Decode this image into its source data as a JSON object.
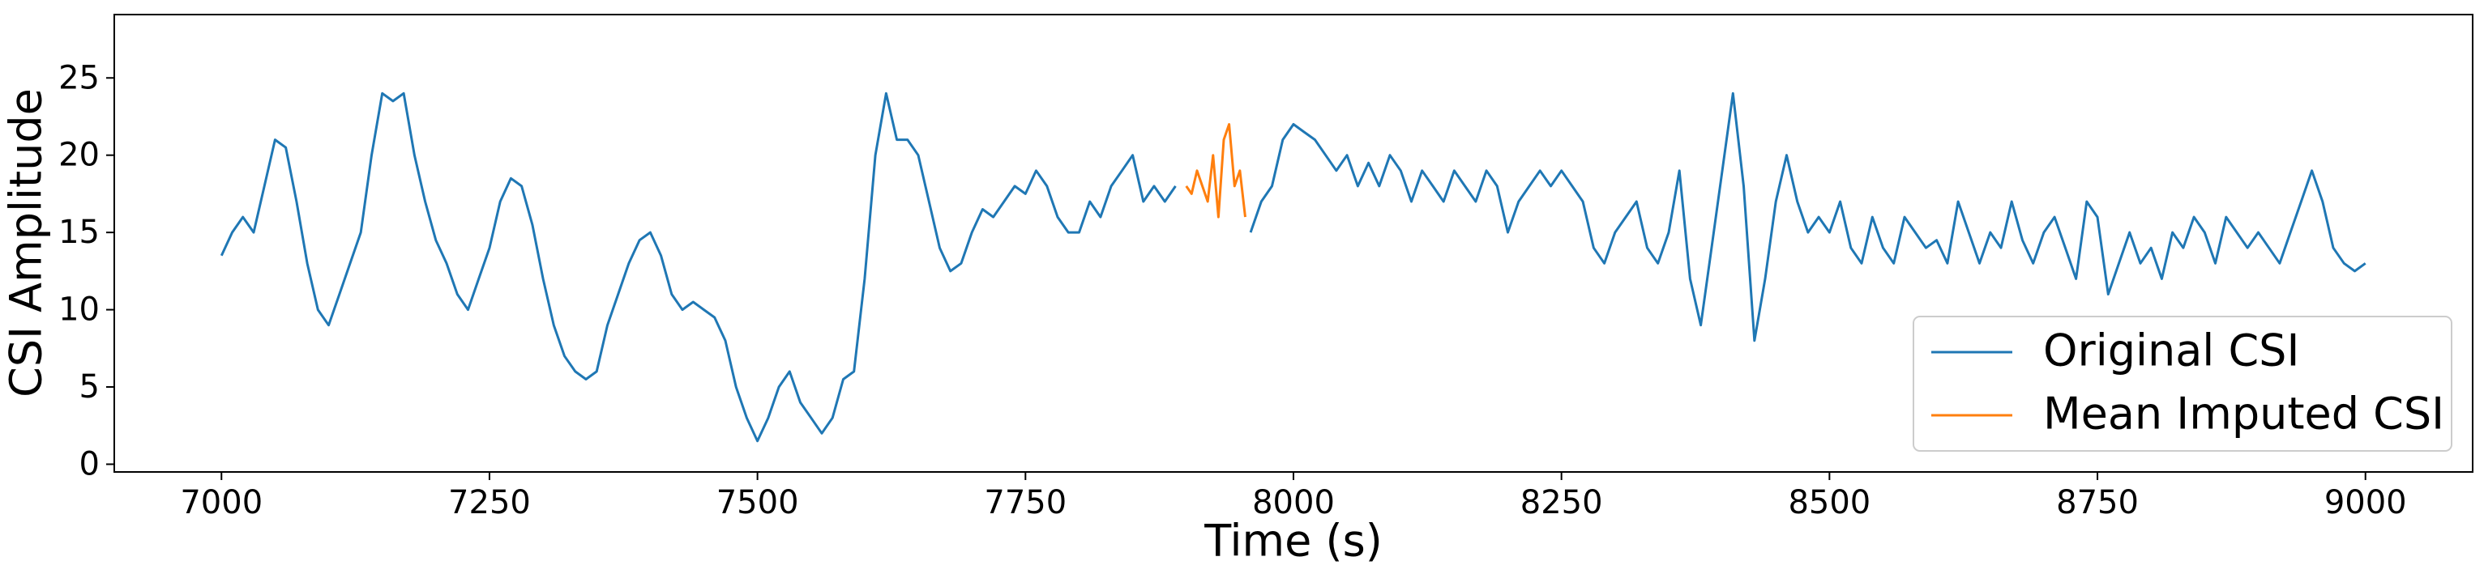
{
  "chart_data": {
    "type": "line",
    "xlabel": "Time (s)",
    "ylabel": "CSI Amplitude",
    "xlim": [
      6900,
      9100
    ],
    "ylim": [
      -0.5,
      29.1
    ],
    "xticks": [
      7000,
      7250,
      7500,
      7750,
      8000,
      8250,
      8500,
      8750,
      9000
    ],
    "yticks": [
      0,
      5,
      10,
      15,
      20,
      25
    ],
    "grid": false,
    "legend": "lower right",
    "series": [
      {
        "name": "Original CSI",
        "color": "#1f77b4",
        "x": [
          7000,
          7010,
          7020,
          7030,
          7040,
          7050,
          7060,
          7070,
          7080,
          7090,
          7100,
          7110,
          7120,
          7130,
          7140,
          7150,
          7160,
          7170,
          7180,
          7190,
          7200,
          7210,
          7220,
          7230,
          7240,
          7250,
          7260,
          7270,
          7280,
          7290,
          7300,
          7310,
          7320,
          7330,
          7340,
          7350,
          7360,
          7370,
          7380,
          7390,
          7400,
          7410,
          7420,
          7430,
          7440,
          7450,
          7460,
          7470,
          7480,
          7490,
          7500,
          7510,
          7520,
          7530,
          7540,
          7550,
          7560,
          7570,
          7580,
          7590,
          7600,
          7610,
          7620,
          7630,
          7640,
          7650,
          7660,
          7670,
          7680,
          7690,
          7700,
          7710,
          7720,
          7730,
          7740,
          7750,
          7760,
          7770,
          7780,
          7790,
          7800,
          7810,
          7820,
          7830,
          7840,
          7850,
          7860,
          7870,
          7880,
          7890,
          7900,
          7910,
          7920,
          7930,
          7940,
          7950,
          7960,
          7970,
          7980,
          7990,
          8000,
          8010,
          8020,
          8030,
          8040,
          8050,
          8060,
          8070,
          8080,
          8090,
          8100,
          8110,
          8120,
          8130,
          8140,
          8150,
          8160,
          8170,
          8180,
          8190,
          8200,
          8210,
          8220,
          8230,
          8240,
          8250,
          8260,
          8270,
          8280,
          8290,
          8300,
          8310,
          8320,
          8330,
          8340,
          8350,
          8360,
          8370,
          8380,
          8390,
          8400,
          8410,
          8420,
          8430,
          8440,
          8450,
          8460,
          8470,
          8480,
          8490,
          8500,
          8510,
          8520,
          8530,
          8540,
          8550,
          8560,
          8570,
          8580,
          8590,
          8600,
          8610,
          8620,
          8630,
          8640,
          8650,
          8660,
          8670,
          8680,
          8690,
          8700,
          8710,
          8720,
          8730,
          8740,
          8750,
          8760,
          8770,
          8780,
          8790,
          8800,
          8810,
          8820,
          8830,
          8840,
          8850,
          8860,
          8870,
          8880,
          8890,
          8900,
          8910,
          8920,
          8930,
          8940,
          8950,
          8960,
          8970,
          8980,
          8990,
          9000
        ],
        "values": [
          13.5,
          15,
          16,
          15,
          18,
          21,
          20.5,
          17,
          13,
          10,
          9,
          11,
          13,
          15,
          20,
          24,
          23.5,
          24,
          20,
          17,
          14.5,
          13,
          11,
          10,
          12,
          14,
          17,
          18.5,
          18,
          15.5,
          12,
          9,
          7,
          6,
          5.5,
          6,
          9,
          11,
          13,
          14.5,
          15,
          13.5,
          11,
          10,
          10.5,
          10,
          9.5,
          8,
          5,
          3,
          1.5,
          3,
          5,
          6,
          4,
          3,
          2,
          3,
          5.5,
          6,
          12,
          20,
          24,
          21,
          21,
          20,
          17,
          14,
          12.5,
          13,
          15,
          16.5,
          16,
          17,
          18,
          17.5,
          19,
          18,
          16,
          15,
          15,
          17,
          16,
          18,
          19,
          20,
          17,
          18,
          17,
          18,
          null,
          null,
          null,
          null,
          null,
          null,
          15,
          17,
          18,
          21,
          22,
          21.5,
          21,
          20,
          19,
          20,
          18,
          19.5,
          18,
          20,
          19,
          17,
          19,
          18,
          17,
          19,
          18,
          17,
          19,
          18,
          15,
          17,
          18,
          19,
          18,
          19,
          18,
          17,
          14,
          13,
          15,
          16,
          17,
          14,
          13,
          15,
          19,
          12,
          9,
          14,
          19,
          24,
          18,
          8,
          12,
          17,
          20,
          17,
          15,
          16,
          15,
          17,
          14,
          13,
          16,
          14,
          13,
          16,
          15,
          14,
          14.5,
          13,
          17,
          15,
          13,
          15,
          14,
          17,
          14.5,
          13,
          15,
          16,
          14,
          12,
          17,
          16,
          11,
          13,
          15,
          13,
          14,
          12,
          15,
          14,
          16,
          15,
          13,
          16,
          15,
          14,
          15,
          14,
          13,
          15,
          17,
          19,
          17,
          14,
          13,
          12.5,
          13
        ]
      },
      {
        "name": "Mean Imputed CSI",
        "color": "#ff7f0e",
        "x": [
          7900,
          7905,
          7910,
          7915,
          7920,
          7925,
          7930,
          7935,
          7940,
          7945,
          7950,
          7955
        ],
        "values": [
          18,
          17.5,
          19,
          18,
          17,
          20,
          16,
          21,
          22,
          18,
          19,
          16
        ]
      }
    ]
  }
}
